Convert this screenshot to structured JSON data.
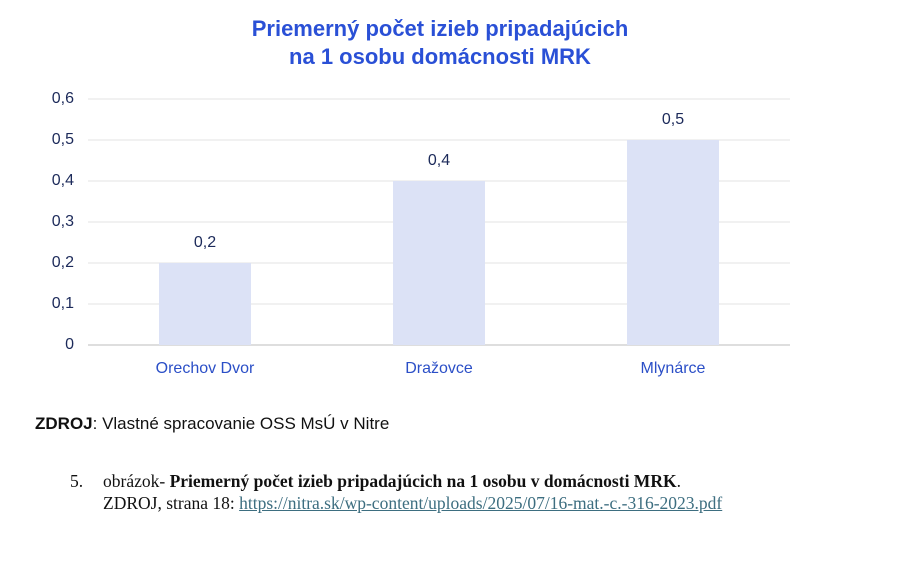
{
  "chart_data": {
    "type": "bar",
    "title": [
      "Priemerný počet izieb pripadajúcich",
      "na 1 osobu domácnosti MRK"
    ],
    "categories": [
      "Orechov Dvor",
      "Dražovce",
      "Mlynárce"
    ],
    "values": [
      0.2,
      0.4,
      0.5
    ],
    "value_labels": [
      "0,2",
      "0,4",
      "0,5"
    ],
    "color": "#dce2f6",
    "ylim": [
      0,
      0.6
    ],
    "yticks": [
      0,
      {
        "value": 0.1,
        "label": "0,1"
      },
      {
        "value": 0.2,
        "label": "0,2"
      },
      {
        "value": 0.3,
        "label": "0,3"
      },
      {
        "value": 0.4,
        "label": "0,4"
      },
      {
        "value": 0.5,
        "label": "0,5"
      },
      {
        "value": 0.6,
        "label": "0,6"
      }
    ],
    "grid": true
  },
  "source": {
    "label": "ZDROJ",
    "text": ": Vlastné spracovanie OSS MsÚ v Nitre"
  },
  "caption": {
    "number": "5.",
    "prefix": "obrázok-",
    "title": "Priemerný počet izieb pripadajúcich na 1 osobu v domácnosti MRK",
    "suffix": ".",
    "source": "ZDROJ, strana 18:",
    "link": "https://nitra.sk/wp-content/uploads/2025/07/16-mat.-c.-316-2023.pdf"
  }
}
